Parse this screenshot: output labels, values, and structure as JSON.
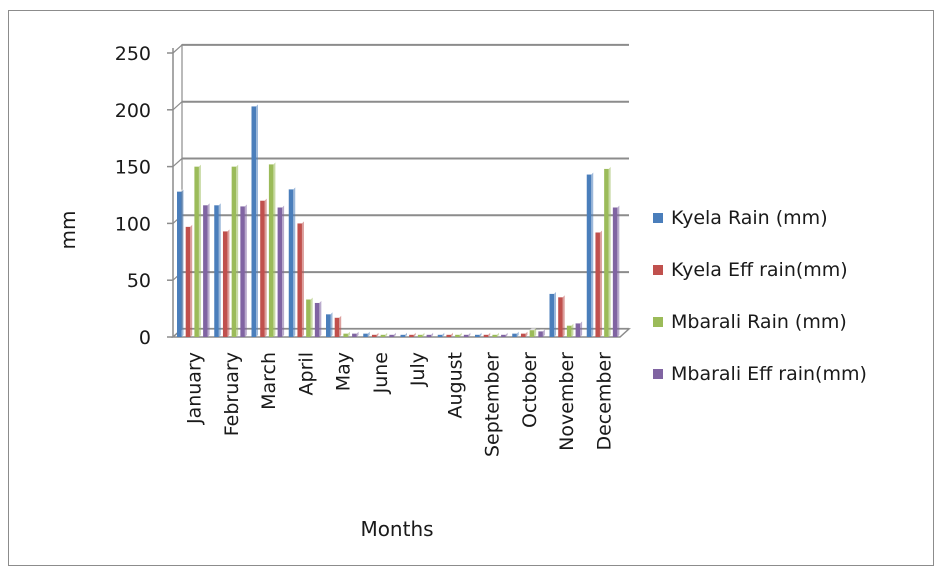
{
  "chart_data": {
    "type": "bar",
    "categories": [
      "January",
      "February",
      "March",
      "April",
      "May",
      "June",
      "July",
      "August",
      "September",
      "October",
      "November",
      "December"
    ],
    "series": [
      {
        "name": "Kyela Rain  (mm)",
        "color": "#4a7ebb",
        "values": [
          128,
          116,
          203,
          130,
          20,
          3,
          2,
          2,
          2,
          3,
          38,
          143
        ]
      },
      {
        "name": "Kyela Eff rain(mm)",
        "color": "#c0504d",
        "values": [
          97,
          93,
          120,
          100,
          17,
          2,
          2,
          2,
          2,
          3,
          35,
          92
        ]
      },
      {
        "name": "Mbarali Rain (mm)",
        "color": "#9bbb59",
        "values": [
          150,
          150,
          152,
          33,
          3,
          2,
          2,
          2,
          2,
          6,
          10,
          148
        ]
      },
      {
        "name": "Mbarali Eff rain(mm)",
        "color": "#8064a2",
        "values": [
          116,
          115,
          114,
          30,
          3,
          2,
          2,
          2,
          2,
          5,
          12,
          114
        ]
      }
    ],
    "xlabel": "Months",
    "ylabel": "mm",
    "ylim": [
      0,
      250
    ],
    "yticks": [
      0,
      50,
      100,
      150,
      200,
      250
    ],
    "grid": true,
    "legend_position": "right"
  }
}
